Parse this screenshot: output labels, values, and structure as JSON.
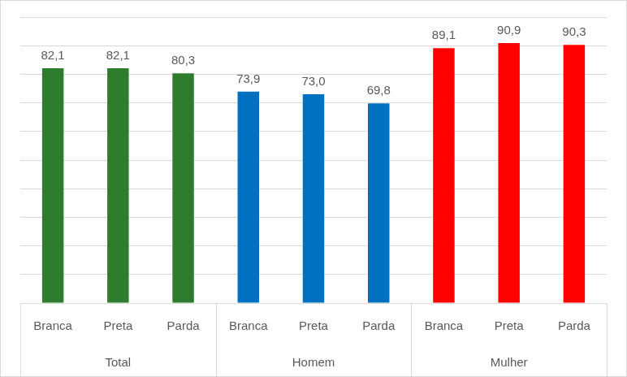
{
  "chart_data": {
    "type": "bar",
    "categories": [
      "Branca",
      "Preta",
      "Parda",
      "Branca",
      "Preta",
      "Parda",
      "Branca",
      "Preta",
      "Parda"
    ],
    "category_groups": [
      "Total",
      "Total",
      "Total",
      "Homem",
      "Homem",
      "Homem",
      "Mulher",
      "Mulher",
      "Mulher"
    ],
    "values": [
      82.1,
      82.1,
      80.3,
      73.9,
      73.0,
      69.8,
      89.1,
      90.9,
      90.3
    ],
    "value_labels": [
      "82,1",
      "82,1",
      "80,3",
      "73,9",
      "73,0",
      "69,8",
      "89,1",
      "90,9",
      "90,3"
    ],
    "colors": [
      "#2e7d2e",
      "#2e7d2e",
      "#2e7d2e",
      "#0070c0",
      "#0070c0",
      "#0070c0",
      "#ff0000",
      "#ff0000",
      "#ff0000"
    ],
    "ylim": [
      0,
      100
    ],
    "yticks": [
      0,
      10,
      20,
      30,
      40,
      50,
      60,
      70,
      80,
      90,
      100
    ],
    "grid": true,
    "data_labels": true,
    "tick_labels": "x"
  }
}
